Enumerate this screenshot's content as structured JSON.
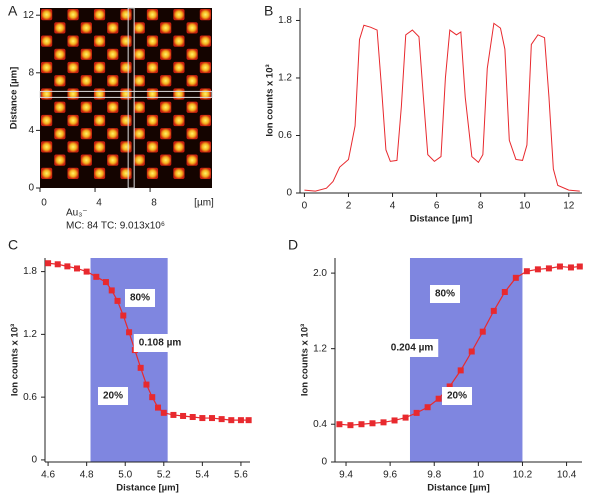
{
  "chart_data": [
    {
      "type": "image",
      "panel_label": "A",
      "xlim": [
        0,
        12.5
      ],
      "ylim": [
        0,
        12.5
      ],
      "xticks": [
        0,
        4,
        8
      ],
      "yticks": [
        0,
        4,
        8,
        12
      ],
      "x_unit": "[µm]",
      "ylabel": "Distance [µm]",
      "caption": [
        "Au₃⁻",
        "MC: 84 TC: 9.013x10⁶"
      ]
    },
    {
      "type": "line",
      "panel_label": "B",
      "xlabel": "Distance [µm]",
      "ylabel": "Ion counts x 10³",
      "color": "#e8292e",
      "xlim": [
        -0.2,
        12.6
      ],
      "ylim": [
        0,
        1.93
      ],
      "xticks": [
        0,
        2,
        4,
        6,
        8,
        10,
        12
      ],
      "yticks": [
        0,
        {
          "value": 0.6,
          "label": "0.6"
        },
        {
          "value": 1.2,
          "label": "1.2"
        },
        {
          "value": 1.8,
          "label": "1.8"
        }
      ],
      "x": [
        0,
        0.5,
        1.0,
        1.3,
        1.6,
        2.0,
        2.3,
        2.5,
        2.7,
        3.0,
        3.3,
        3.5,
        3.7,
        3.9,
        4.2,
        4.4,
        4.6,
        4.9,
        5.2,
        5.4,
        5.6,
        5.9,
        6.2,
        6.4,
        6.6,
        6.9,
        7.1,
        7.3,
        7.6,
        7.9,
        8.1,
        8.3,
        8.6,
        8.9,
        9.1,
        9.3,
        9.6,
        9.9,
        10.1,
        10.3,
        10.6,
        10.9,
        11.1,
        11.3,
        11.5,
        12.0,
        12.5
      ],
      "values": [
        0.03,
        0.02,
        0.05,
        0.12,
        0.27,
        0.35,
        0.7,
        1.6,
        1.75,
        1.73,
        1.7,
        1.1,
        0.45,
        0.33,
        0.34,
        0.9,
        1.65,
        1.7,
        1.63,
        1.0,
        0.4,
        0.33,
        0.38,
        1.2,
        1.7,
        1.65,
        1.68,
        1.0,
        0.38,
        0.32,
        0.4,
        1.3,
        1.77,
        1.72,
        1.5,
        0.55,
        0.35,
        0.34,
        0.5,
        1.55,
        1.65,
        1.62,
        1.0,
        0.25,
        0.08,
        0.03,
        0.02
      ]
    },
    {
      "type": "profile",
      "panel_label": "C",
      "xlabel": "Distance [µm]",
      "ylabel": "Ion counts x 10³",
      "color": "#e8292e",
      "band_color": "#7f86e0",
      "band": [
        4.82,
        5.22
      ],
      "xlim": [
        4.584,
        5.647
      ],
      "ylim": [
        -0.02,
        1.93
      ],
      "xticks": [
        {
          "value": 4.6,
          "label": "4.6"
        },
        {
          "value": 4.8,
          "label": "4.8"
        },
        {
          "value": 5.0,
          "label": "5.0"
        },
        {
          "value": 5.2,
          "label": "5.2"
        },
        {
          "value": 5.4,
          "label": "5.4"
        },
        {
          "value": 5.6,
          "label": "5.6"
        }
      ],
      "yticks": [
        0,
        {
          "value": 0.6,
          "label": "0.6"
        },
        {
          "value": 1.2,
          "label": "1.2"
        },
        {
          "value": 1.8,
          "label": "1.8"
        }
      ],
      "annotations": [
        "80%",
        "0.108 µm",
        "20%"
      ],
      "x": [
        4.6,
        4.65,
        4.7,
        4.75,
        4.8,
        4.85,
        4.9,
        4.93,
        4.96,
        4.99,
        5.02,
        5.05,
        5.08,
        5.11,
        5.14,
        5.17,
        5.2,
        5.25,
        5.3,
        5.35,
        5.4,
        5.45,
        5.5,
        5.55,
        5.6,
        5.64
      ],
      "values": [
        1.88,
        1.87,
        1.85,
        1.83,
        1.8,
        1.75,
        1.7,
        1.62,
        1.52,
        1.38,
        1.22,
        1.05,
        0.88,
        0.72,
        0.6,
        0.5,
        0.45,
        0.43,
        0.42,
        0.41,
        0.4,
        0.4,
        0.39,
        0.38,
        0.38,
        0.38
      ]
    },
    {
      "type": "profile",
      "panel_label": "D",
      "xlabel": "Distance [µm]",
      "ylabel": "Ion counts x 10³",
      "color": "#e8292e",
      "band_color": "#7f86e0",
      "band": [
        9.69,
        10.2
      ],
      "xlim": [
        9.35,
        10.47
      ],
      "ylim": [
        0,
        2.16
      ],
      "xticks": [
        {
          "value": 9.4,
          "label": "9.4"
        },
        {
          "value": 9.6,
          "label": "9.6"
        },
        {
          "value": 9.8,
          "label": "9.8"
        },
        10,
        {
          "value": 10.2,
          "label": "10.2"
        },
        {
          "value": 10.4,
          "label": "10.4"
        }
      ],
      "yticks": [
        0,
        {
          "value": 0.4,
          "label": "0.4"
        },
        {
          "value": 1.2,
          "label": "1.2"
        },
        {
          "value": 2.0,
          "label": "2.0"
        }
      ],
      "annotations": [
        "80%",
        "0.204 µm",
        "20%"
      ],
      "x": [
        9.37,
        9.42,
        9.47,
        9.52,
        9.57,
        9.62,
        9.67,
        9.72,
        9.77,
        9.82,
        9.87,
        9.92,
        9.97,
        10.02,
        10.07,
        10.12,
        10.17,
        10.22,
        10.27,
        10.32,
        10.37,
        10.42,
        10.46
      ],
      "values": [
        0.4,
        0.39,
        0.4,
        0.41,
        0.42,
        0.44,
        0.47,
        0.52,
        0.58,
        0.67,
        0.8,
        0.97,
        1.17,
        1.38,
        1.6,
        1.8,
        1.95,
        2.02,
        2.04,
        2.05,
        2.07,
        2.06,
        2.07
      ]
    }
  ]
}
